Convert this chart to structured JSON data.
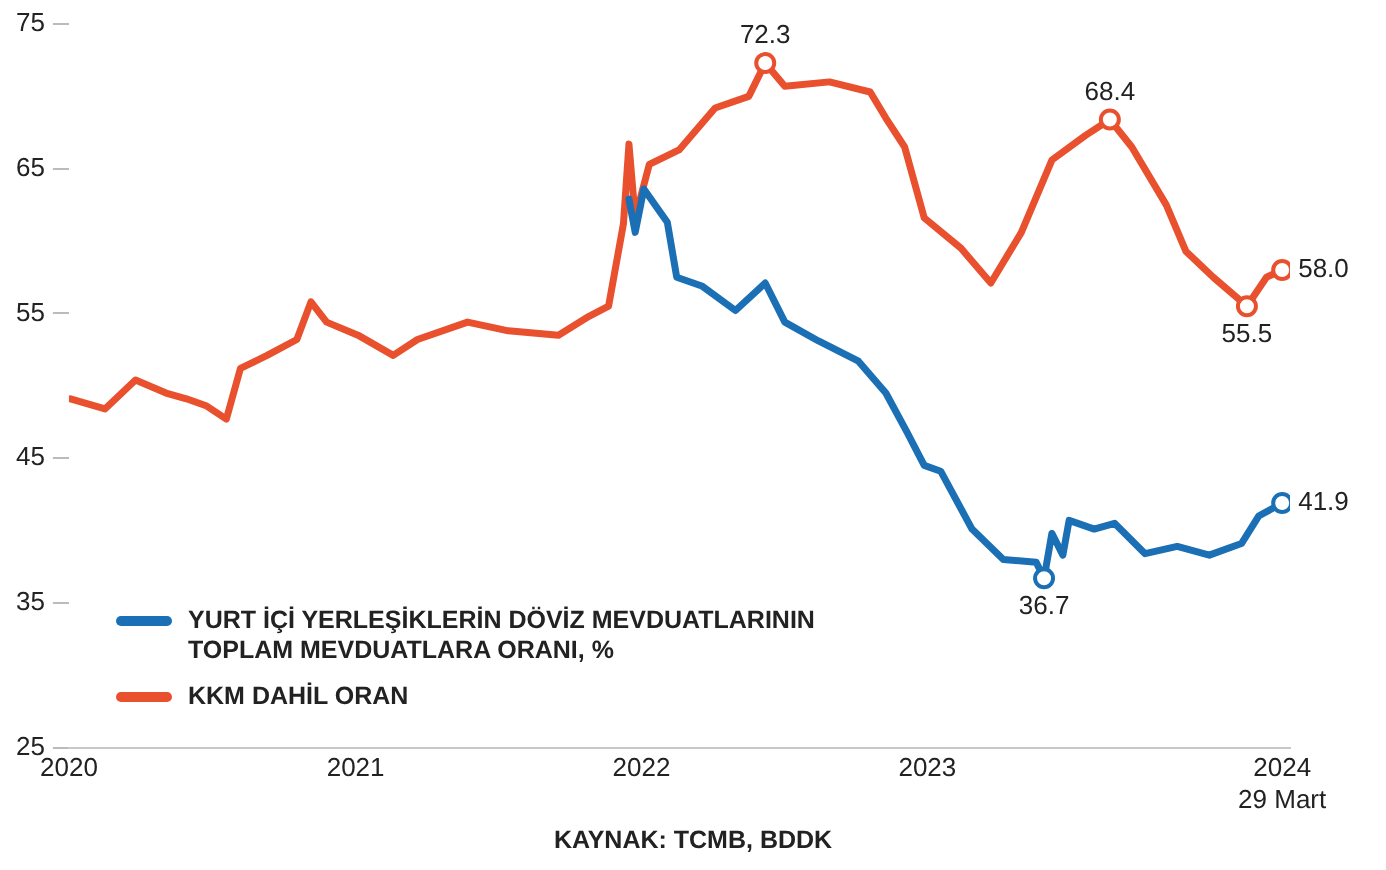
{
  "chart_data": {
    "type": "line",
    "annotations": [
      "KAYNAK: TCMB, BDDK"
    ],
    "xlim": [
      "2020-01-01",
      "2024-04-08"
    ],
    "xticks": [
      "2020",
      "2021",
      "2022",
      "2023",
      {
        "value": "2024-03-29",
        "label": "2024\n29 Mart"
      }
    ],
    "ylim": [
      25,
      75
    ],
    "yticks": [
      25,
      35,
      45,
      55,
      65,
      75
    ],
    "grid": false,
    "legend": "bottom left",
    "line_style": "solid",
    "series": [
      {
        "name": "YURT İÇİ YERLEŞİKLERİN DÖVİZ MEVDUATLARININ TOPLAM MEVDUATLARA ORANI, %",
        "color": "#1a6fb5",
        "x": [
          "2021-12-16",
          "2021-12-24",
          "2022-01-04",
          "2022-02-03",
          "2022-02-15",
          "2022-03-19",
          "2022-05-01",
          "2022-06-08",
          "2022-07-03",
          "2022-08-15",
          "2022-10-05",
          "2022-11-09",
          "2022-12-06",
          "2022-12-28",
          "2023-01-18",
          "2023-02-27",
          "2023-04-08",
          "2023-05-20",
          "2023-05-30",
          "2023-06-09",
          "2023-06-23",
          "2023-07-01",
          "2023-08-02",
          "2023-08-28",
          "2023-10-06",
          "2023-11-16",
          "2023-12-27",
          "2024-02-06",
          "2024-02-28",
          "2024-03-29"
        ],
        "values": [
          62.9,
          60.6,
          63.6,
          61.3,
          57.5,
          56.9,
          55.2,
          57.1,
          54.4,
          53.1,
          51.7,
          49.5,
          46.8,
          44.5,
          44.1,
          40.1,
          38.0,
          37.8,
          36.7,
          39.8,
          38.3,
          40.7,
          40.1,
          40.5,
          38.4,
          38.9,
          38.3,
          39.1,
          41.0,
          41.9
        ],
        "value_labels": [
          null,
          null,
          null,
          null,
          null,
          null,
          null,
          null,
          null,
          null,
          null,
          null,
          null,
          null,
          null,
          null,
          null,
          null,
          "36.7",
          null,
          null,
          null,
          null,
          null,
          null,
          null,
          null,
          null,
          null,
          "41.9"
        ]
      },
      {
        "name": "KKM DAHİL ORAN",
        "color": "#e8502e",
        "x": [
          "2020-01-03",
          "2020-02-16",
          "2020-03-26",
          "2020-05-04",
          "2020-05-30",
          "2020-06-25",
          "2020-07-20",
          "2020-08-07",
          "2020-09-10",
          "2020-10-18",
          "2020-11-05",
          "2020-11-25",
          "2021-01-04",
          "2021-02-18",
          "2021-03-21",
          "2021-05-24",
          "2021-07-15",
          "2021-09-17",
          "2021-10-26",
          "2021-11-20",
          "2021-12-09",
          "2021-12-16",
          "2021-12-24",
          "2022-01-11",
          "2022-02-18",
          "2022-04-05",
          "2022-05-18",
          "2022-06-08",
          "2022-07-03",
          "2022-08-29",
          "2022-10-20",
          "2022-11-09",
          "2022-12-03",
          "2022-12-28",
          "2023-02-13",
          "2023-03-23",
          "2023-05-01",
          "2023-06-09",
          "2023-07-22",
          "2023-08-22",
          "2023-09-19",
          "2023-11-02",
          "2023-11-27",
          "2024-01-01",
          "2024-02-13",
          "2024-03-09",
          "2024-03-29"
        ],
        "values": [
          49.1,
          48.4,
          50.4,
          49.5,
          49.1,
          48.6,
          47.7,
          51.2,
          52.1,
          53.2,
          55.8,
          54.4,
          53.5,
          52.1,
          53.2,
          54.4,
          53.8,
          53.5,
          54.8,
          55.5,
          61.2,
          66.7,
          61.6,
          65.3,
          66.3,
          69.2,
          70.0,
          72.3,
          70.7,
          71.0,
          70.3,
          68.5,
          66.5,
          61.6,
          59.5,
          57.1,
          60.6,
          65.6,
          67.3,
          68.4,
          66.5,
          62.5,
          59.3,
          57.5,
          55.5,
          57.5,
          58.0
        ],
        "value_labels": [
          null,
          null,
          null,
          null,
          null,
          null,
          null,
          null,
          null,
          null,
          null,
          null,
          null,
          null,
          null,
          null,
          null,
          null,
          null,
          null,
          null,
          null,
          null,
          null,
          null,
          null,
          null,
          "72.3",
          null,
          null,
          null,
          null,
          null,
          null,
          null,
          null,
          null,
          null,
          null,
          "68.4",
          null,
          null,
          null,
          null,
          "55.5",
          null,
          "58.0"
        ]
      }
    ]
  }
}
